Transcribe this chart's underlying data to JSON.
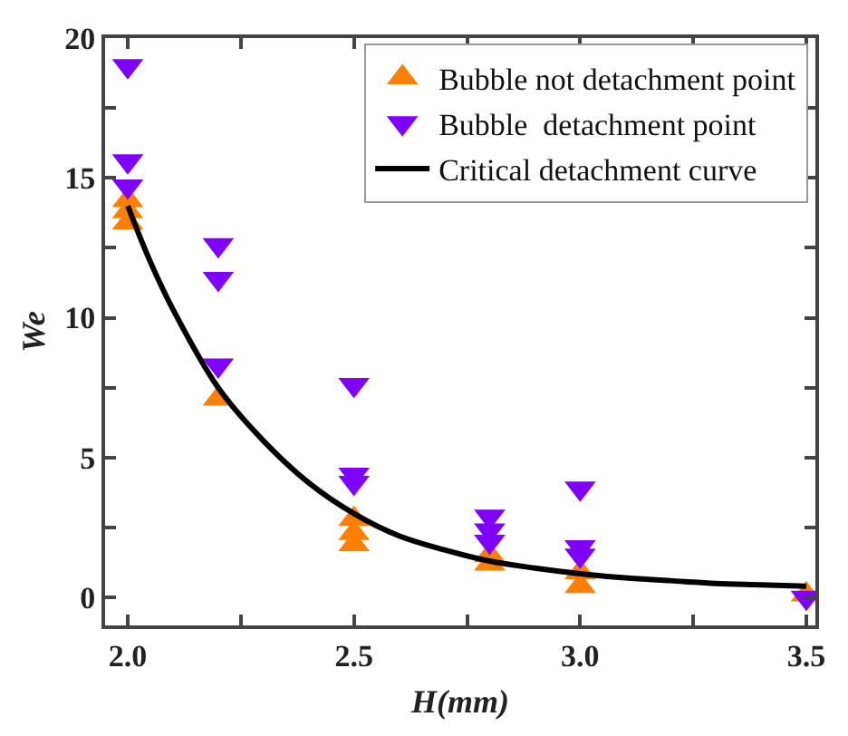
{
  "chart_data": {
    "type": "scatter",
    "xlabel": "H(mm)",
    "ylabel": "We",
    "xlim": [
      1.95,
      3.52
    ],
    "ylim": [
      -1,
      20
    ],
    "xticks": [
      {
        "value": 2.0,
        "label": "2.0"
      },
      {
        "value": 2.25,
        "label": null
      },
      {
        "value": 2.5,
        "label": "2.5"
      },
      {
        "value": 2.75,
        "label": null
      },
      {
        "value": 3.0,
        "label": "3.0"
      },
      {
        "value": 3.25,
        "label": null
      },
      {
        "value": 3.5,
        "label": "3.5"
      }
    ],
    "yticks": [
      0,
      {
        "value": 2.5,
        "label": null
      },
      5,
      {
        "value": 7.5,
        "label": null
      },
      10,
      {
        "value": 12.5,
        "label": null
      },
      15,
      {
        "value": 17.5,
        "label": null
      },
      20
    ],
    "legend": "top right",
    "series": [
      {
        "name": "Bubble not detachment point",
        "color": "#ff8000",
        "marker": "triangle",
        "x": [
          2.0,
          2.0,
          2.0,
          2.2,
          2.5,
          2.5,
          2.5,
          2.8,
          2.8,
          3.0,
          3.0,
          3.5
        ],
        "values": [
          14.2,
          13.8,
          13.4,
          7.1,
          2.8,
          2.3,
          1.9,
          1.5,
          1.2,
          0.9,
          0.4,
          0.1
        ]
      },
      {
        "name": "Bubble  detachment point",
        "color": "#8000ff",
        "marker": "triangle-down",
        "x": [
          2.0,
          2.0,
          2.0,
          2.2,
          2.2,
          2.2,
          2.5,
          2.5,
          2.5,
          2.8,
          2.8,
          2.8,
          3.0,
          3.0,
          3.0,
          3.5
        ],
        "values": [
          19.0,
          15.6,
          14.7,
          12.6,
          11.4,
          8.3,
          7.6,
          4.4,
          4.1,
          2.9,
          2.4,
          2.0,
          3.9,
          1.8,
          1.5,
          0.0
        ]
      },
      {
        "name": "Critical detachment curve",
        "type": "line",
        "color": "#000000",
        "marker": "none",
        "x": [
          2.0,
          2.05,
          2.1,
          2.2,
          2.3,
          2.4,
          2.5,
          2.6,
          2.7,
          2.8,
          2.9,
          3.0,
          3.1,
          3.2,
          3.3,
          3.4,
          3.5
        ],
        "values": [
          14.0,
          12.0,
          10.3,
          7.5,
          5.6,
          4.1,
          3.0,
          2.2,
          1.7,
          1.3,
          1.05,
          0.85,
          0.7,
          0.6,
          0.5,
          0.45,
          0.4
        ]
      }
    ]
  }
}
